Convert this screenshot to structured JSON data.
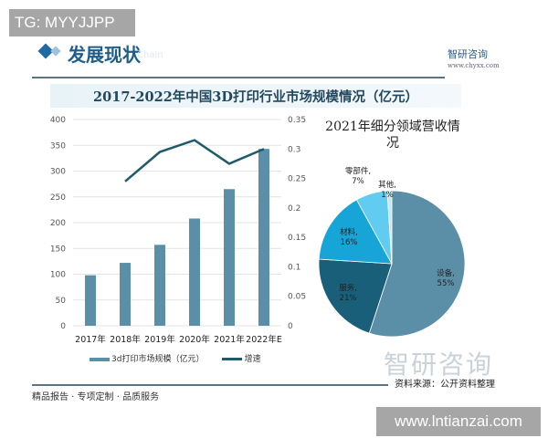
{
  "watermark_top": "TG: MYYJJPP",
  "watermark_bottom": "www.lntianzai.com",
  "header": {
    "section_title": "发展现状",
    "section_subtitle": "Chain",
    "logo": "智研咨询",
    "url": "www.chyxx.com"
  },
  "footer": {
    "tagline": "精品报告 · 专项定制 · 品质服务",
    "source": "资料来源：公开资料整理",
    "logo": "智研咨询"
  },
  "colors": {
    "bar": "#5b8fa8",
    "line": "#1d5a6b",
    "accent": "#1f6aa5"
  },
  "chart_data": [
    {
      "type": "bar",
      "title": "2017-2022年中国3D打印行业市场规模情况（亿元）",
      "categories": [
        "2017年",
        "2018年",
        "2019年",
        "2020年",
        "2021年",
        "2022年E"
      ],
      "series": [
        {
          "name": "3d打印市场规模（亿元）",
          "type": "bar",
          "axis": "left",
          "values": [
            98,
            122,
            157,
            208,
            265,
            343
          ]
        },
        {
          "name": "增速",
          "type": "line",
          "axis": "right",
          "values": [
            null,
            0.245,
            0.295,
            0.315,
            0.275,
            0.3
          ]
        }
      ],
      "ylim": [
        0,
        400
      ],
      "yticks": [
        "0",
        "50",
        "100",
        "150",
        "200",
        "250",
        "300",
        "350",
        "400"
      ],
      "y2lim": [
        0,
        0.35
      ],
      "y2ticks": [
        "0",
        "0.05",
        "0.1",
        "0.15",
        "0.2",
        "0.25",
        "0.3",
        "0.35"
      ],
      "grid": true,
      "legend": "bottom"
    },
    {
      "type": "pie",
      "title": "2021年细分领域营收情况",
      "slices": [
        {
          "label": "设备",
          "value": 55,
          "text": "55%",
          "color": "#5b8fa8"
        },
        {
          "label": "服务",
          "value": 21,
          "text": "21%",
          "color": "#1a5f7a"
        },
        {
          "label": "材料",
          "value": 16,
          "text": "16%",
          "color": "#17a5d8"
        },
        {
          "label": "零部件",
          "value": 7,
          "text": "7%",
          "color": "#62ccf0"
        },
        {
          "label": "其他",
          "value": 1,
          "text": "1%",
          "color": "#c4e8ef"
        }
      ]
    }
  ]
}
